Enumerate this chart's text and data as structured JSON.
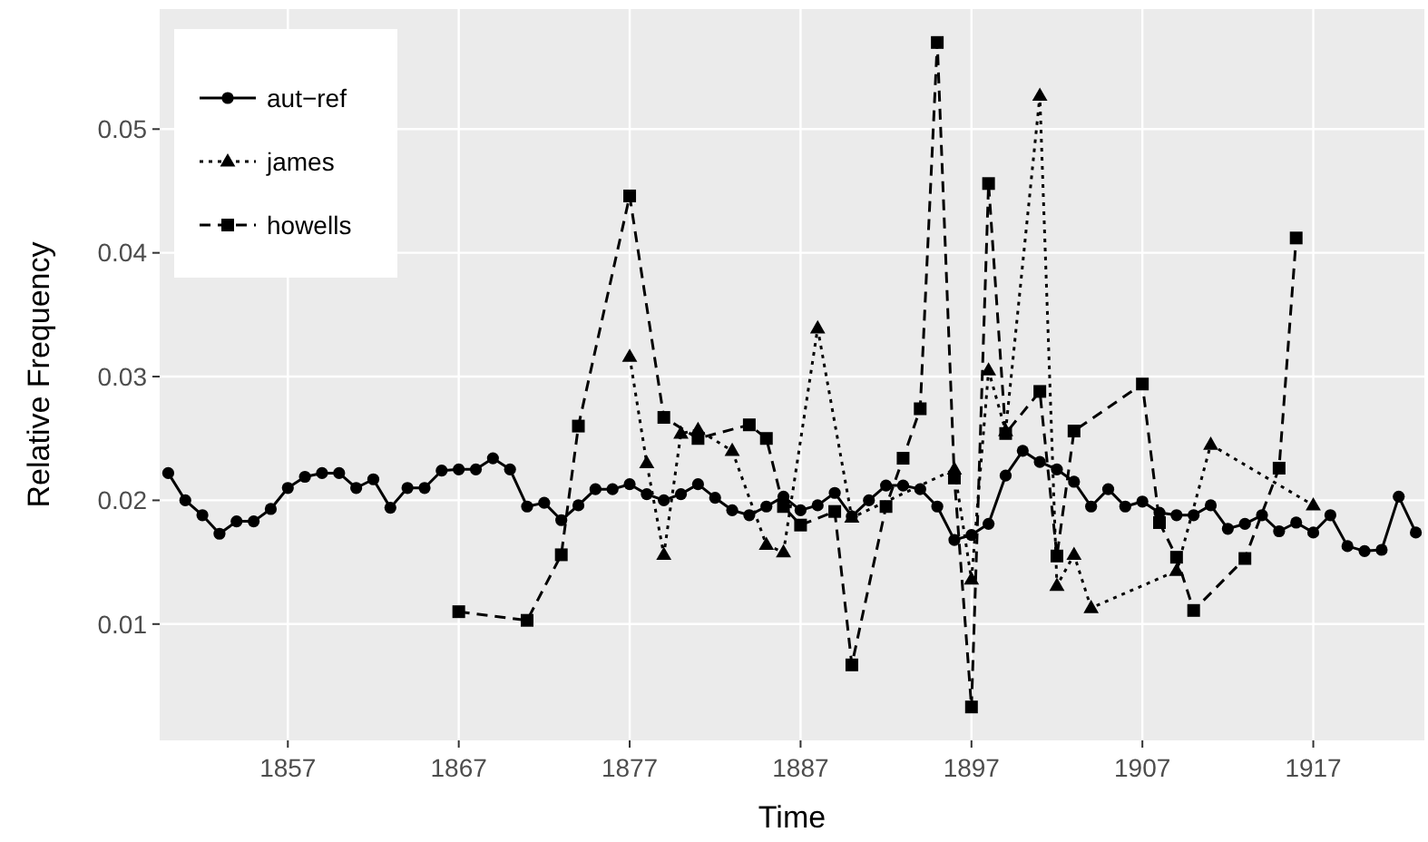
{
  "chart_data": {
    "type": "line",
    "xlabel": "Time",
    "ylabel": "Relative Frequency",
    "xlim": [
      1849.5,
      1923.5
    ],
    "ylim": [
      0.0006,
      0.0597
    ],
    "xticks": [
      1857,
      1867,
      1877,
      1887,
      1897,
      1907,
      1917
    ],
    "yticks": [
      0.01,
      0.02,
      0.03,
      0.04,
      0.05
    ],
    "grid": true,
    "legend": "top left",
    "series": [
      {
        "name": "aut−ref",
        "color": "#000000",
        "marker": "circle",
        "line_style": "solid",
        "x": [
          1850,
          1851,
          1852,
          1853,
          1854,
          1855,
          1856,
          1857,
          1858,
          1859,
          1860,
          1861,
          1862,
          1863,
          1864,
          1865,
          1866,
          1867,
          1868,
          1869,
          1870,
          1871,
          1872,
          1873,
          1874,
          1875,
          1876,
          1877,
          1878,
          1879,
          1880,
          1881,
          1882,
          1883,
          1884,
          1885,
          1886,
          1887,
          1888,
          1889,
          1890,
          1891,
          1892,
          1893,
          1894,
          1895,
          1896,
          1897,
          1898,
          1899,
          1900,
          1901,
          1902,
          1903,
          1904,
          1905,
          1906,
          1907,
          1908,
          1909,
          1910,
          1911,
          1912,
          1913,
          1914,
          1915,
          1916,
          1917,
          1918,
          1919,
          1920,
          1921,
          1922,
          1923
        ],
        "values": [
          0.0222,
          0.02,
          0.0188,
          0.0173,
          0.0183,
          0.0183,
          0.0193,
          0.021,
          0.0219,
          0.0222,
          0.0222,
          0.021,
          0.0217,
          0.0194,
          0.021,
          0.021,
          0.0224,
          0.0225,
          0.0225,
          0.0234,
          0.0225,
          0.0195,
          0.0198,
          0.0184,
          0.0196,
          0.0209,
          0.0209,
          0.0213,
          0.0205,
          0.02,
          0.0205,
          0.0213,
          0.0202,
          0.0192,
          0.0188,
          0.0195,
          0.0203,
          0.0192,
          0.0196,
          0.0206,
          0.0187,
          0.02,
          0.0212,
          0.0212,
          0.0209,
          0.0195,
          0.0168,
          0.0172,
          0.0181,
          0.022,
          0.024,
          0.0231,
          0.0225,
          0.0215,
          0.0195,
          0.0209,
          0.0195,
          0.0199,
          0.019,
          0.0188,
          0.0188,
          0.0196,
          0.0177,
          0.0181,
          0.0188,
          0.0175,
          0.0182,
          0.0174,
          0.0188,
          0.0163,
          0.0159,
          0.016,
          0.0203,
          0.0174
        ]
      },
      {
        "name": "james",
        "color": "#000000",
        "marker": "triangle",
        "line_style": "dotted",
        "x": [
          1877,
          1878,
          1879,
          1880,
          1881,
          1883,
          1885,
          1886,
          1888,
          1890,
          1896,
          1897,
          1898,
          1899,
          1901,
          1902,
          1903,
          1904,
          1909,
          1911,
          1917
        ],
        "values": [
          0.0316,
          0.023,
          0.0156,
          0.0254,
          0.0257,
          0.024,
          0.0164,
          0.0158,
          0.0339,
          0.0186,
          0.0225,
          0.0136,
          0.0305,
          0.0256,
          0.0527,
          0.0131,
          0.0156,
          0.0113,
          0.0143,
          0.0245,
          0.0196
        ]
      },
      {
        "name": "howells",
        "color": "#000000",
        "marker": "square",
        "line_style": "dashed",
        "x": [
          1867,
          1871,
          1873,
          1874,
          1877,
          1879,
          1881,
          1884,
          1885,
          1886,
          1887,
          1889,
          1890,
          1892,
          1893,
          1894,
          1895,
          1896,
          1897,
          1898,
          1899,
          1901,
          1902,
          1903,
          1907,
          1908,
          1909,
          1910,
          1913,
          1915,
          1916
        ],
        "values": [
          0.011,
          0.0103,
          0.0156,
          0.026,
          0.0446,
          0.0267,
          0.025,
          0.0261,
          0.025,
          0.0195,
          0.018,
          0.0191,
          0.0067,
          0.0195,
          0.0234,
          0.0274,
          0.057,
          0.0218,
          0.0033,
          0.0456,
          0.0254,
          0.0288,
          0.0155,
          0.0256,
          0.0294,
          0.0182,
          0.0154,
          0.0111,
          0.0153,
          0.0226,
          0.0412
        ]
      }
    ]
  }
}
